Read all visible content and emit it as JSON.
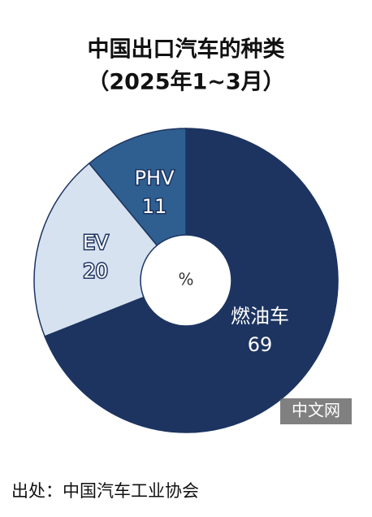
{
  "chart_data": {
    "type": "pie",
    "title": "中国出口汽车的种类",
    "subtitle": "（2025年1~3月）",
    "categories": [
      "燃油车",
      "EV",
      "PHV"
    ],
    "values": [
      69,
      20,
      11
    ],
    "colors": [
      "#1d3461",
      "#d6e2ef",
      "#2f5f91"
    ],
    "center_label": "%",
    "source": "出处：中国汽车工业协会",
    "watermark": "中文网"
  }
}
